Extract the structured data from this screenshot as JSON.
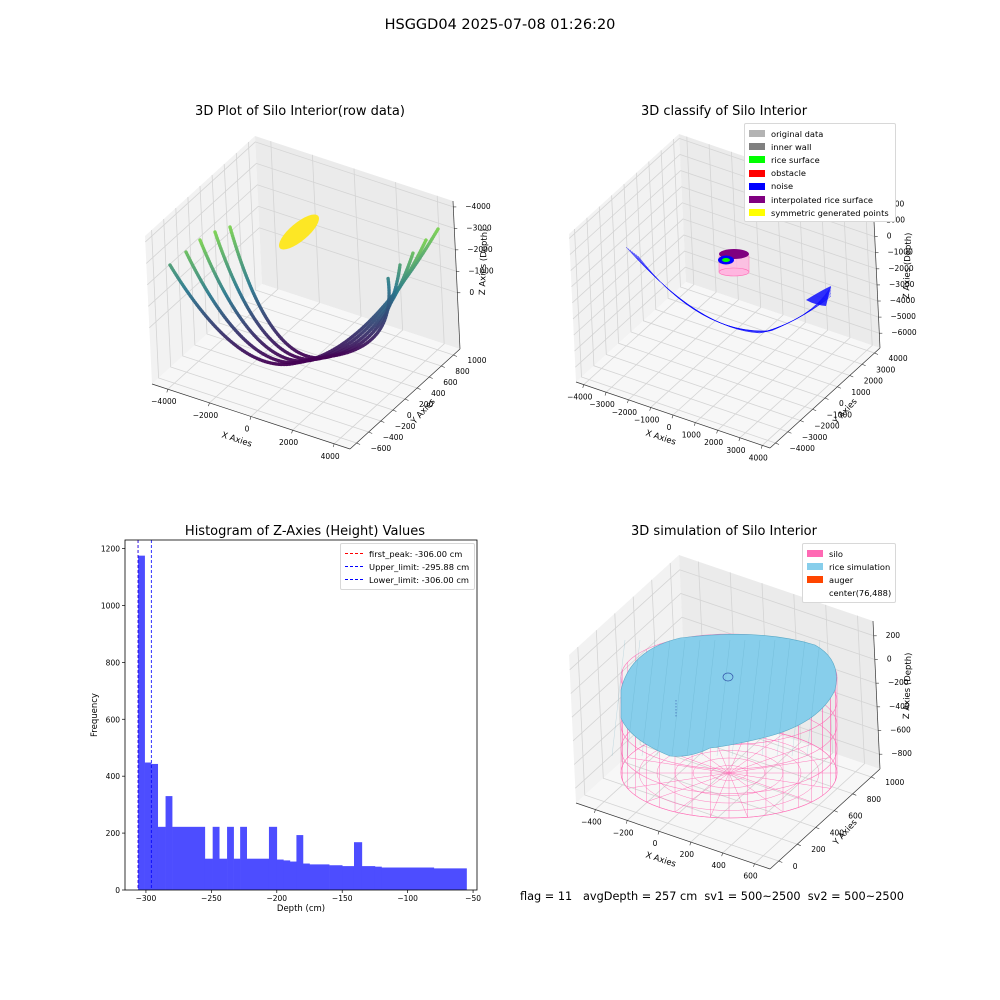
{
  "suptitle": "HSGGD04 2025-07-08 01:26:20",
  "colors": {
    "original_data": "#b3b3b3",
    "inner_wall": "#808080",
    "rice_surface": "#00ff00",
    "obstacle": "#ff0000",
    "noise": "#0000ff",
    "interpolated": "#800080",
    "symmetric": "#ffff00",
    "hist_bar": "#4d4dff",
    "silo": "#ff69b4",
    "rice_sim": "#87ceeb",
    "auger": "#ff4500"
  },
  "plot1": {
    "title": "3D Plot of Silo Interior(row data)",
    "xlabel": "X Axies",
    "ylabel": "Y Axies",
    "zlabel": "Z Axies (Depth)",
    "xticks": [
      "−4000",
      "−2000",
      "0",
      "2000",
      "4000"
    ],
    "yticks": [
      "−600",
      "−400",
      "−200",
      "0",
      "200",
      "400",
      "600",
      "800",
      "1000"
    ],
    "zticks": [
      "0",
      "−1000",
      "−2000",
      "−3000",
      "−4000"
    ]
  },
  "plot2": {
    "title": "3D classify of Silo Interior",
    "xlabel": "X Axies",
    "ylabel": "Y Axies",
    "zlabel": "Z Axies (Depth)",
    "xticks": [
      "−4000",
      "−3000",
      "−2000",
      "−1000",
      "0",
      "1000",
      "2000",
      "3000",
      "4000"
    ],
    "yticks": [
      "−4000",
      "−3000",
      "−2000",
      "−1000",
      "0",
      "1000",
      "2000",
      "3000",
      "4000"
    ],
    "zticks": [
      "2000",
      "1000",
      "0",
      "−1000",
      "−2000",
      "−3000",
      "−4000",
      "−5000",
      "−6000"
    ],
    "legend": [
      {
        "label": "original data",
        "color": "#b3b3b3"
      },
      {
        "label": "inner wall",
        "color": "#808080"
      },
      {
        "label": "rice surface",
        "color": "#00ff00"
      },
      {
        "label": "obstacle",
        "color": "#ff0000"
      },
      {
        "label": "noise",
        "color": "#0000ff"
      },
      {
        "label": "interpolated rice surface",
        "color": "#800080"
      },
      {
        "label": "symmetric generated points",
        "color": "#ffff00"
      }
    ]
  },
  "plot4": {
    "title": "3D simulation of Silo Interior",
    "xlabel": "X Axies",
    "ylabel": "Y Axies",
    "zlabel": "Z Axies (Depth)",
    "xticks": [
      "−400",
      "−200",
      "0",
      "200",
      "400",
      "600"
    ],
    "yticks": [
      "0",
      "200",
      "400",
      "600",
      "800",
      "1000"
    ],
    "zticks": [
      "200",
      "0",
      "−200",
      "−400",
      "−600",
      "−800"
    ],
    "legend": [
      {
        "label": "silo",
        "color": "#ff69b4"
      },
      {
        "label": "rice simulation",
        "color": "#87ceeb"
      },
      {
        "label": "auger",
        "color": "#ff4500"
      },
      {
        "label": "center(76,488)",
        "color": ""
      }
    ]
  },
  "chart_data": {
    "type": "bar",
    "title": "Histogram of Z-Axies (Height) Values",
    "xlabel": "Depth (cm)",
    "ylabel": "Frequency",
    "xlim": [
      -316,
      -47
    ],
    "ylim": [
      0,
      1230
    ],
    "xticks": [
      -300,
      -250,
      -200,
      -150,
      -100,
      -50
    ],
    "xtick_labels": [
      "−300",
      "−250",
      "−200",
      "−150",
      "−100",
      "−50"
    ],
    "yticks": [
      0,
      200,
      400,
      600,
      800,
      1000,
      1200
    ],
    "bins": [
      [
        -306,
        -301,
        1175
      ],
      [
        -301,
        -296,
        448
      ],
      [
        -296,
        -291,
        443
      ],
      [
        -291,
        -285,
        222
      ],
      [
        -285,
        -280,
        330
      ],
      [
        -280,
        -255,
        222
      ],
      [
        -255,
        -249,
        110
      ],
      [
        -249,
        -244,
        222
      ],
      [
        -244,
        -238,
        110
      ],
      [
        -238,
        -233,
        222
      ],
      [
        -233,
        -228,
        110
      ],
      [
        -228,
        -223,
        222
      ],
      [
        -223,
        -206,
        110
      ],
      [
        -206,
        -200,
        222
      ],
      [
        -200,
        -195,
        107
      ],
      [
        -195,
        -190,
        104
      ],
      [
        -190,
        -185,
        100
      ],
      [
        -185,
        -180,
        193
      ],
      [
        -180,
        -175,
        93
      ],
      [
        -175,
        -160,
        90
      ],
      [
        -160,
        -150,
        87
      ],
      [
        -150,
        -141,
        84
      ],
      [
        -141,
        -135,
        168
      ],
      [
        -135,
        -125,
        84
      ],
      [
        -125,
        -120,
        82
      ],
      [
        -120,
        -80,
        79
      ],
      [
        -80,
        -55,
        76
      ]
    ],
    "lines": [
      {
        "label": "first_peak: -306.00 cm",
        "x": -306.0,
        "color": "#ff0000"
      },
      {
        "label": "Upper_limit: -295.88 cm",
        "x": -295.88,
        "color": "#0000ff"
      },
      {
        "label": "Lower_limit: -306.00 cm",
        "x": -306.0,
        "color": "#0000ff"
      }
    ]
  },
  "footer": "flag = 11   avgDepth = 257 cm  sv1 = 500~2500  sv2 = 500~2500"
}
